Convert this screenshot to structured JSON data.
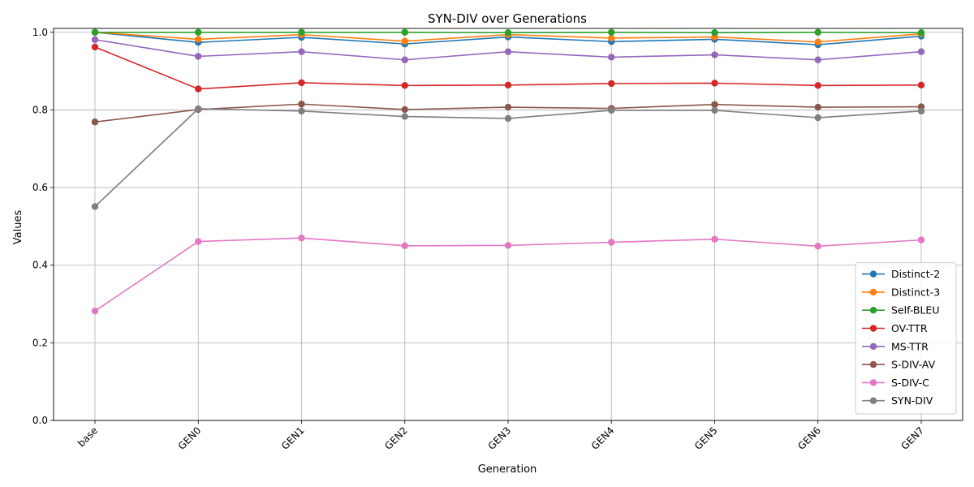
{
  "chart_data": {
    "type": "line",
    "title": "SYN-DIV over Generations",
    "xlabel": "Generation",
    "ylabel": "Values",
    "categories": [
      "base",
      "GEN0",
      "GEN1",
      "GEN2",
      "GEN3",
      "GEN4",
      "GEN5",
      "GEN6",
      "GEN7"
    ],
    "ylim": [
      0,
      1.01
    ],
    "yticks": [
      "0.0",
      "0.2",
      "0.4",
      "0.6",
      "0.8",
      "1.0"
    ],
    "grid": true,
    "legend_position": "lower right",
    "series": [
      {
        "name": "Distinct-2",
        "color": "#1f77b4",
        "values": [
          1.0,
          0.974,
          0.987,
          0.97,
          0.988,
          0.976,
          0.982,
          0.968,
          0.99
        ]
      },
      {
        "name": "Distinct-3",
        "color": "#ff7f0e",
        "values": [
          1.0,
          0.982,
          0.994,
          0.977,
          0.994,
          0.985,
          0.988,
          0.975,
          0.996
        ]
      },
      {
        "name": "Self-BLEU",
        "color": "#2ca02c",
        "values": [
          1.0,
          1.0,
          1.0,
          1.0,
          0.999,
          1.0,
          0.999,
          1.0,
          0.999
        ]
      },
      {
        "name": "OV-TTR",
        "color": "#d62728",
        "values": [
          0.962,
          0.854,
          0.87,
          0.863,
          0.864,
          0.868,
          0.869,
          0.863,
          0.864
        ]
      },
      {
        "name": "MS-TTR",
        "color": "#9467bd",
        "values": [
          0.981,
          0.938,
          0.95,
          0.929,
          0.95,
          0.936,
          0.942,
          0.929,
          0.95
        ]
      },
      {
        "name": "S-DIV-AV",
        "color": "#8c564b",
        "values": [
          0.769,
          0.801,
          0.815,
          0.801,
          0.807,
          0.804,
          0.814,
          0.807,
          0.808
        ]
      },
      {
        "name": "S-DIV-C",
        "color": "#e377c2",
        "values": [
          0.282,
          0.461,
          0.47,
          0.45,
          0.451,
          0.459,
          0.467,
          0.449,
          0.465
        ]
      },
      {
        "name": "SYN-DIV",
        "color": "#7f7f7f",
        "values": [
          0.551,
          0.803,
          0.797,
          0.783,
          0.778,
          0.799,
          0.799,
          0.78,
          0.797
        ]
      }
    ]
  }
}
